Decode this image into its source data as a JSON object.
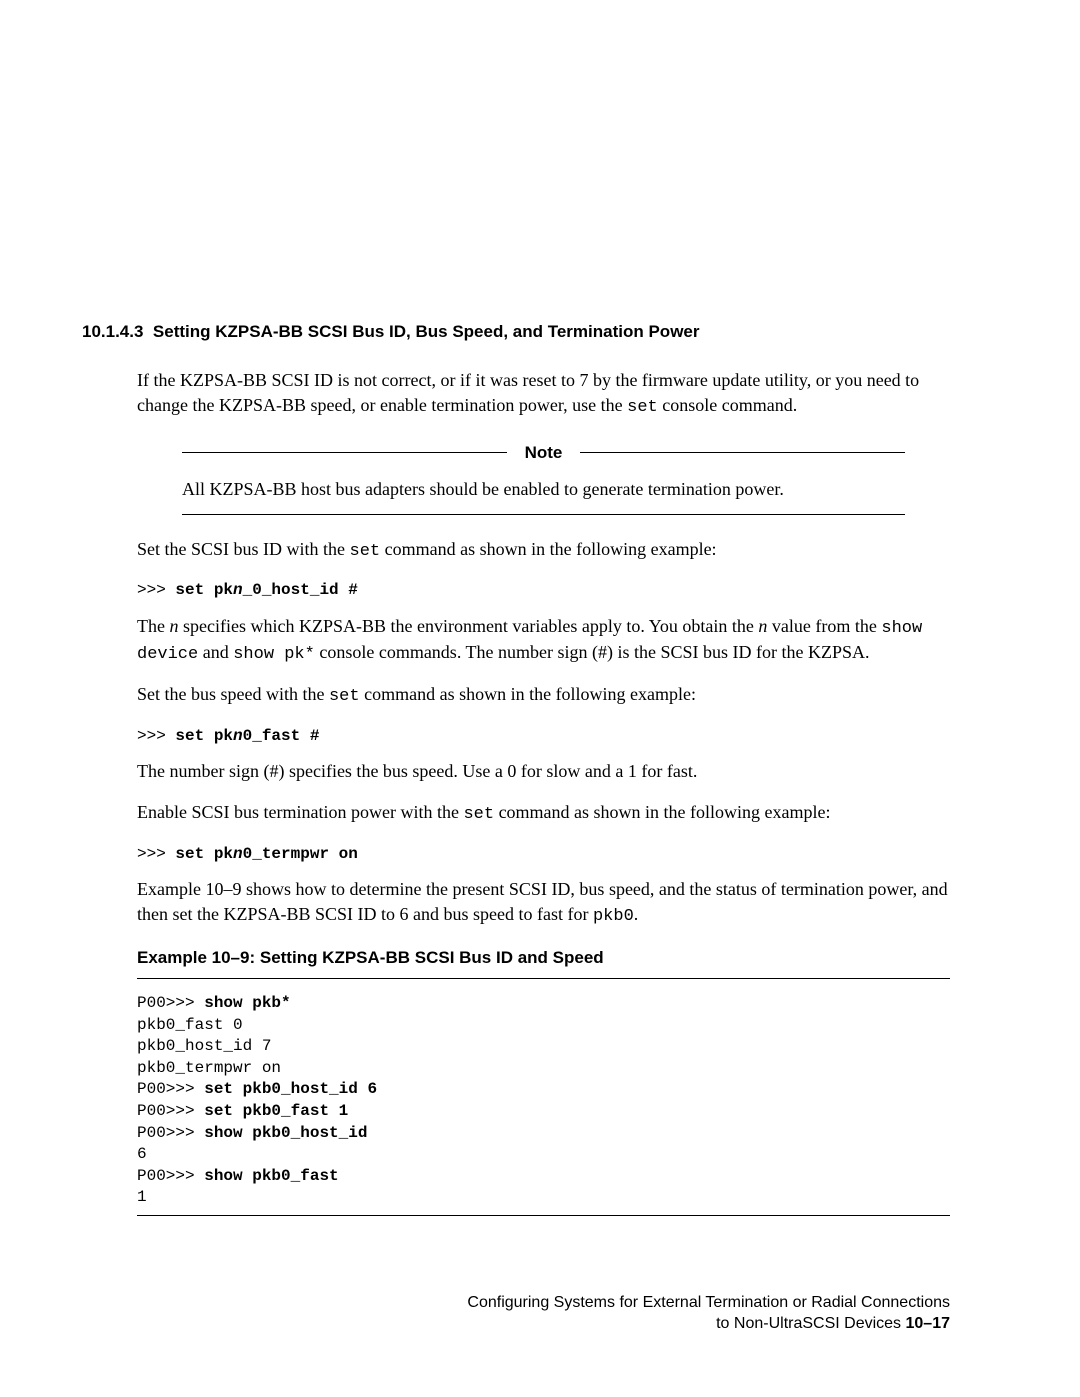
{
  "section": {
    "number": "10.1.4.3",
    "title": "Setting KZPSA-BB SCSI Bus ID, Bus Speed, and Termination Power"
  },
  "para1": {
    "pre": "If the KZPSA-BB SCSI ID is not correct, or if it was reset to 7 by the firmware update utility, or you need to change the KZPSA-BB speed, or enable termination power, use the ",
    "cmd": "set",
    "post": " console command."
  },
  "note": {
    "label": "Note",
    "body": "All KZPSA-BB host bus adapters should be enabled to generate termination power."
  },
  "para2": {
    "pre": "Set the SCSI bus ID with the ",
    "cmd": "set",
    "post": " command as shown in the following example:"
  },
  "cmd1": {
    "prompt": ">>> ",
    "a": "set pk",
    "n": "n",
    "b": "_0_host_id #"
  },
  "para3": {
    "a": "The ",
    "n1": "n",
    "b": " specifies which KZPSA-BB the environment variables apply to. You obtain the ",
    "n2": "n",
    "c": " value from the ",
    "cmd1": "show device",
    "d": " and ",
    "cmd2": "show pk*",
    "e": " console commands. The number sign (#) is the SCSI bus ID for the KZPSA."
  },
  "para4": {
    "pre": "Set the bus speed with the ",
    "cmd": "set",
    "post": " command as shown in the following example:"
  },
  "cmd2": {
    "prompt": ">>> ",
    "a": "set pk",
    "n": "n",
    "b": "0_fast #"
  },
  "para5": "The number sign (#) specifies the bus speed. Use a 0 for slow and a 1 for fast.",
  "para6": {
    "pre": "Enable SCSI bus termination power with the ",
    "cmd": "set",
    "post": " command as shown in the following example:"
  },
  "cmd3": {
    "prompt": ">>> ",
    "a": "set pk",
    "n": "n",
    "b": "0_termpwr on"
  },
  "para7": {
    "a": "Example 10–9 shows how to determine the present SCSI ID, bus speed, and the status of termination power, and then set the KZPSA-BB SCSI ID to 6 and bus speed to fast for ",
    "cmd": "pkb0",
    "b": "."
  },
  "example": {
    "heading": "Example 10–9: Setting KZPSA-BB SCSI Bus ID and Speed",
    "lines": [
      {
        "p": "P00>>> ",
        "b": "show pkb*"
      },
      {
        "t": "pkb0_fast 0"
      },
      {
        "t": "pkb0_host_id 7"
      },
      {
        "t": "pkb0_termpwr on"
      },
      {
        "p": "P00>>> ",
        "b": "set pkb0_host_id 6"
      },
      {
        "p": "P00>>> ",
        "b": "set pkb0_fast 1"
      },
      {
        "p": "P00>>> ",
        "b": "show pkb0_host_id"
      },
      {
        "t": "6"
      },
      {
        "p": "P00>>> ",
        "b": "show pkb0_fast"
      },
      {
        "t": "1"
      }
    ]
  },
  "footer": {
    "line1": "Configuring Systems for External Termination or Radial Connections",
    "line2a": "to Non-UltraSCSI Devices  ",
    "pagenum": "10–17"
  }
}
